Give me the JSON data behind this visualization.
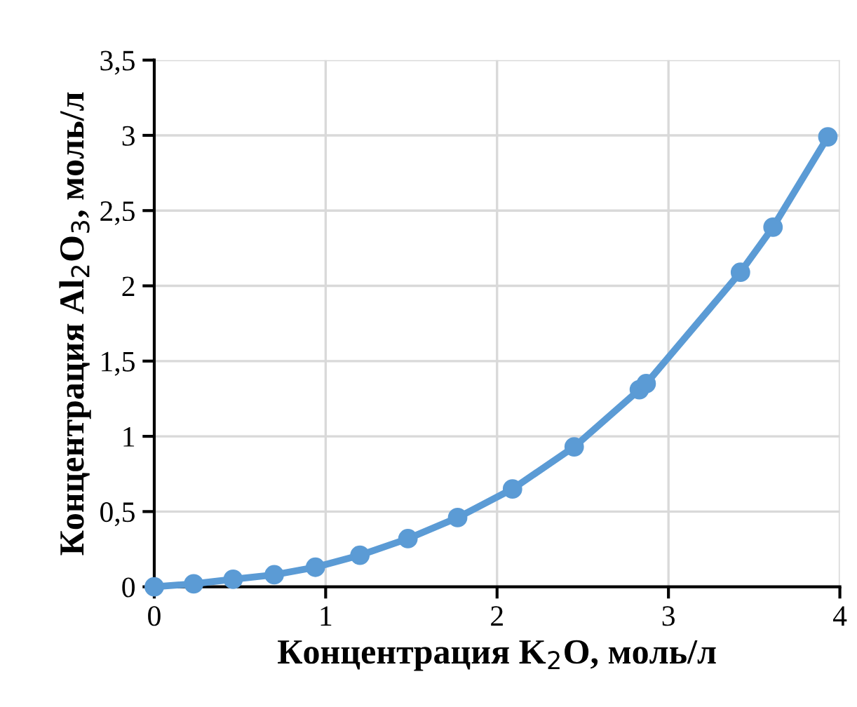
{
  "chart_data": {
    "type": "line",
    "xlabel": "Концентрация K$_{2}$O, моль/л",
    "ylabel": "Концентрация Al$_{2}$O$_{3}$, моль/л",
    "x": [
      0,
      0.23,
      0.46,
      0.7,
      0.94,
      1.2,
      1.48,
      1.77,
      2.09,
      2.45,
      2.83,
      2.87,
      3.42,
      3.61,
      3.93
    ],
    "series": [
      {
        "color": "#5b9bd5",
        "values": [
          0,
          0.02,
          0.05,
          0.08,
          0.13,
          0.21,
          0.32,
          0.46,
          0.65,
          0.93,
          1.31,
          1.35,
          2.09,
          2.39,
          2.99
        ]
      }
    ],
    "xlim": [
      0,
      4
    ],
    "xticks": [
      0,
      1,
      2,
      3,
      4
    ],
    "ylim": [
      0,
      3.5
    ],
    "yticks": [
      0,
      {
        "value": 0.5,
        "label": "0,5"
      },
      1,
      {
        "value": 1.5,
        "label": "1,5"
      },
      2,
      {
        "value": 2.5,
        "label": "2,5"
      },
      3,
      {
        "value": 3.5,
        "label": "3,5"
      }
    ],
    "grid": true,
    "marker": "circle",
    "line_style": "solid"
  }
}
